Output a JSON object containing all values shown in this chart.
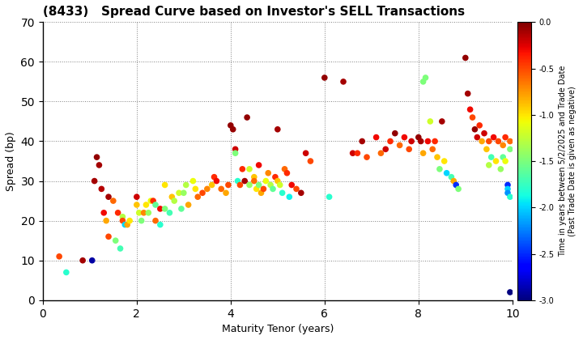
{
  "title": "(8433)   Spread Curve based on Investor's SELL Transactions",
  "xlabel": "Maturity Tenor (years)",
  "ylabel": "Spread (bp)",
  "xlim": [
    0,
    10
  ],
  "ylim": [
    0,
    70
  ],
  "xticks": [
    0,
    2,
    4,
    6,
    8,
    10
  ],
  "yticks": [
    0,
    10,
    20,
    30,
    40,
    50,
    60,
    70
  ],
  "colorbar_label_line1": "Time in years between 5/2/2025 and Trade Date",
  "colorbar_label_line2": "(Past Trade Date is given as negative)",
  "cmap_min": -3.0,
  "cmap_max": 0.0,
  "points": [
    [
      0.35,
      11,
      -0.5
    ],
    [
      0.5,
      7,
      -1.8
    ],
    [
      0.85,
      10,
      -0.1
    ],
    [
      1.05,
      10,
      -2.9
    ],
    [
      1.1,
      30,
      -0.1
    ],
    [
      1.15,
      36,
      -0.05
    ],
    [
      1.2,
      34,
      -0.1
    ],
    [
      1.25,
      28,
      -0.15
    ],
    [
      1.3,
      22,
      -0.3
    ],
    [
      1.35,
      20,
      -0.8
    ],
    [
      1.4,
      16,
      -0.5
    ],
    [
      1.4,
      26,
      -0.1
    ],
    [
      1.5,
      25,
      -0.6
    ],
    [
      1.55,
      15,
      -1.5
    ],
    [
      1.6,
      22,
      -0.4
    ],
    [
      1.65,
      13,
      -1.7
    ],
    [
      1.7,
      21,
      -1.3
    ],
    [
      1.7,
      20,
      -0.5
    ],
    [
      1.75,
      19,
      -2.0
    ],
    [
      1.8,
      19,
      -0.8
    ],
    [
      1.85,
      20,
      -1.0
    ],
    [
      2.0,
      26,
      -0.2
    ],
    [
      2.0,
      24,
      -0.9
    ],
    [
      2.05,
      22,
      -1.2
    ],
    [
      2.1,
      20,
      -1.5
    ],
    [
      2.15,
      22,
      -0.7
    ],
    [
      2.2,
      24,
      -1.0
    ],
    [
      2.25,
      22,
      -1.4
    ],
    [
      2.3,
      25,
      -1.1
    ],
    [
      2.35,
      25,
      -0.4
    ],
    [
      2.4,
      24,
      -1.6
    ],
    [
      2.4,
      20,
      -0.6
    ],
    [
      2.5,
      19,
      -1.8
    ],
    [
      2.5,
      23,
      -0.3
    ],
    [
      2.6,
      23,
      -1.5
    ],
    [
      2.6,
      29,
      -1.0
    ],
    [
      2.7,
      22,
      -1.7
    ],
    [
      2.75,
      26,
      -0.9
    ],
    [
      2.8,
      25,
      -1.3
    ],
    [
      2.9,
      27,
      -1.2
    ],
    [
      2.95,
      23,
      -1.6
    ],
    [
      3.0,
      27,
      -1.4
    ],
    [
      3.05,
      29,
      -1.3
    ],
    [
      3.1,
      24,
      -0.8
    ],
    [
      3.2,
      30,
      -1.1
    ],
    [
      3.25,
      28,
      -1.0
    ],
    [
      3.3,
      26,
      -0.6
    ],
    [
      3.4,
      27,
      -0.5
    ],
    [
      3.5,
      28,
      -0.7
    ],
    [
      3.6,
      29,
      -0.9
    ],
    [
      3.65,
      31,
      -0.4
    ],
    [
      3.7,
      30,
      -0.3
    ],
    [
      3.8,
      28,
      -0.6
    ],
    [
      3.9,
      27,
      -0.8
    ],
    [
      3.95,
      29,
      -0.5
    ],
    [
      4.0,
      44,
      -0.05
    ],
    [
      4.05,
      43,
      -0.07
    ],
    [
      4.1,
      38,
      -0.2
    ],
    [
      4.1,
      37,
      -1.5
    ],
    [
      4.15,
      30,
      -1.8
    ],
    [
      4.2,
      29,
      -0.5
    ],
    [
      4.25,
      33,
      -0.4
    ],
    [
      4.3,
      30,
      -0.1
    ],
    [
      4.35,
      46,
      -0.05
    ],
    [
      4.4,
      29,
      -1.4
    ],
    [
      4.4,
      33,
      -1.2
    ],
    [
      4.5,
      31,
      -0.9
    ],
    [
      4.5,
      30,
      -0.6
    ],
    [
      4.55,
      28,
      -1.0
    ],
    [
      4.6,
      34,
      -0.3
    ],
    [
      4.6,
      29,
      -1.5
    ],
    [
      4.65,
      27,
      -0.8
    ],
    [
      4.7,
      28,
      -0.5
    ],
    [
      4.75,
      30,
      -1.1
    ],
    [
      4.8,
      32,
      -0.7
    ],
    [
      4.85,
      29,
      -1.3
    ],
    [
      4.9,
      28,
      -1.6
    ],
    [
      4.95,
      31,
      -0.4
    ],
    [
      5.0,
      43,
      -0.1
    ],
    [
      5.0,
      30,
      -0.9
    ],
    [
      5.05,
      29,
      -1.2
    ],
    [
      5.1,
      27,
      -1.8
    ],
    [
      5.15,
      33,
      -0.6
    ],
    [
      5.2,
      32,
      -0.4
    ],
    [
      5.25,
      26,
      -1.9
    ],
    [
      5.3,
      29,
      -0.3
    ],
    [
      5.4,
      28,
      -0.5
    ],
    [
      5.5,
      27,
      -0.1
    ],
    [
      5.6,
      37,
      -0.2
    ],
    [
      5.7,
      35,
      -0.5
    ],
    [
      6.0,
      56,
      -0.05
    ],
    [
      6.1,
      26,
      -1.8
    ],
    [
      6.4,
      55,
      -0.1
    ],
    [
      6.6,
      37,
      -0.2
    ],
    [
      6.7,
      37,
      -0.4
    ],
    [
      6.8,
      40,
      -0.1
    ],
    [
      6.9,
      36,
      -0.5
    ],
    [
      7.1,
      41,
      -0.3
    ],
    [
      7.2,
      37,
      -0.6
    ],
    [
      7.3,
      38,
      -0.2
    ],
    [
      7.4,
      40,
      -0.4
    ],
    [
      7.5,
      42,
      -0.05
    ],
    [
      7.6,
      39,
      -0.6
    ],
    [
      7.7,
      41,
      -0.3
    ],
    [
      7.8,
      38,
      -0.5
    ],
    [
      7.85,
      40,
      -0.2
    ],
    [
      8.0,
      41,
      -0.05
    ],
    [
      8.05,
      40,
      -0.1
    ],
    [
      8.1,
      37,
      -0.8
    ],
    [
      8.1,
      55,
      -1.5
    ],
    [
      8.15,
      56,
      -1.5
    ],
    [
      8.2,
      40,
      -0.3
    ],
    [
      8.25,
      45,
      -1.2
    ],
    [
      8.3,
      38,
      -0.6
    ],
    [
      8.35,
      40,
      -0.4
    ],
    [
      8.4,
      36,
      -0.9
    ],
    [
      8.45,
      33,
      -1.5
    ],
    [
      8.5,
      45,
      -0.1
    ],
    [
      8.55,
      35,
      -1.0
    ],
    [
      8.6,
      32,
      -2.0
    ],
    [
      8.7,
      31,
      -1.7
    ],
    [
      8.75,
      30,
      -0.8
    ],
    [
      8.8,
      29,
      -2.5
    ],
    [
      8.85,
      28,
      -1.5
    ],
    [
      9.0,
      61,
      -0.05
    ],
    [
      9.05,
      52,
      -0.1
    ],
    [
      9.1,
      48,
      -0.3
    ],
    [
      9.15,
      46,
      -0.5
    ],
    [
      9.2,
      43,
      -0.05
    ],
    [
      9.25,
      41,
      -0.2
    ],
    [
      9.3,
      44,
      -0.4
    ],
    [
      9.35,
      40,
      -0.8
    ],
    [
      9.4,
      42,
      -0.2
    ],
    [
      9.45,
      38,
      -0.9
    ],
    [
      9.5,
      34,
      -1.3
    ],
    [
      9.5,
      40,
      -0.5
    ],
    [
      9.55,
      36,
      -1.7
    ],
    [
      9.6,
      41,
      -0.3
    ],
    [
      9.65,
      35,
      -1.0
    ],
    [
      9.7,
      40,
      -0.5
    ],
    [
      9.75,
      33,
      -1.4
    ],
    [
      9.8,
      39,
      -0.7
    ],
    [
      9.8,
      36,
      -1.6
    ],
    [
      9.85,
      41,
      -0.4
    ],
    [
      9.85,
      35,
      -1.1
    ],
    [
      9.9,
      29,
      -2.5
    ],
    [
      9.9,
      28,
      -2.0
    ],
    [
      9.9,
      27,
      -2.2
    ],
    [
      9.95,
      26,
      -1.8
    ],
    [
      9.95,
      2,
      -3.0
    ],
    [
      9.95,
      40,
      -0.6
    ],
    [
      9.95,
      38,
      -1.5
    ]
  ]
}
